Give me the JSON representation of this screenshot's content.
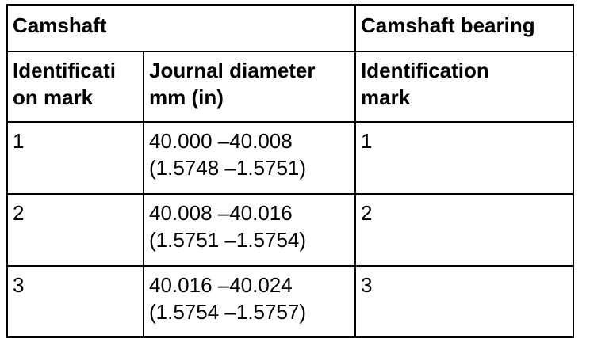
{
  "table": {
    "rows": [
      [
        [
          "Camshaft"
        ],
        [
          "Camshaft bearing"
        ]
      ],
      [
        [
          "Identificati",
          "on mark"
        ],
        [
          "Journal diameter",
          "mm (in)"
        ],
        [
          "Identification",
          "mark"
        ]
      ],
      [
        [
          "1"
        ],
        [
          "40.000 –40.008",
          "(1.5748 –1.5751)"
        ],
        [
          "1"
        ]
      ],
      [
        [
          "2"
        ],
        [
          "40.008 –40.016",
          "(1.5751 –1.5754)"
        ],
        [
          "2"
        ]
      ],
      [
        [
          "3"
        ],
        [
          "40.016 –40.024",
          "(1.5754 –1.5757)"
        ],
        [
          "3"
        ]
      ]
    ]
  }
}
